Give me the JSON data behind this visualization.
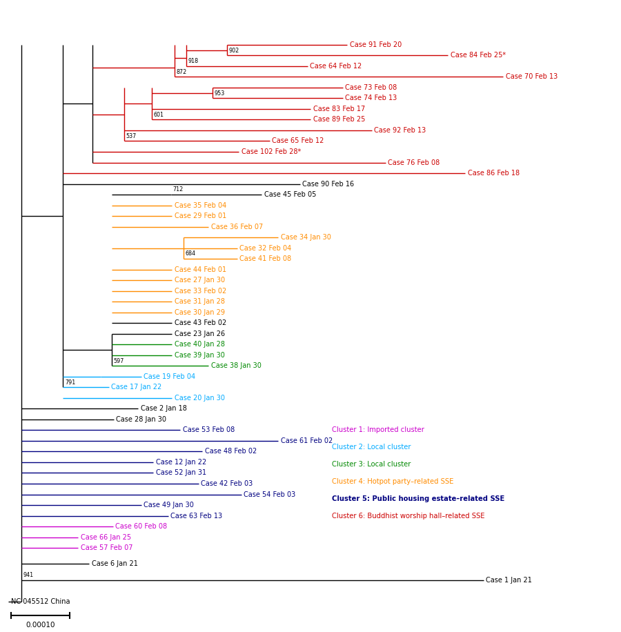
{
  "figure_size": [
    9.0,
    9.16
  ],
  "dpi": 100,
  "background_color": "#ffffff",
  "colors": {
    "black": "#000000",
    "red": "#CC0000",
    "orange": "#FF8C00",
    "cyan": "#00AAFF",
    "green": "#008800",
    "navy": "#000080",
    "purple": "#CC00CC"
  },
  "legend": [
    {
      "text": "Cluster 1: Imported cluster",
      "color": "#CC00CC"
    },
    {
      "text": "Cluster 2: Local cluster",
      "color": "#00AAFF"
    },
    {
      "text": "Cluster 3: Local cluster",
      "color": "#008800"
    },
    {
      "text": "Cluster 4: Hotpot party–related SSE",
      "color": "#FF8C00"
    },
    {
      "text": "Cluster 5: Public housing estate–related SSE",
      "color": "#000080"
    },
    {
      "text": "Cluster 6: Buddhist worship hall–related SSE",
      "color": "#CC0000"
    }
  ]
}
